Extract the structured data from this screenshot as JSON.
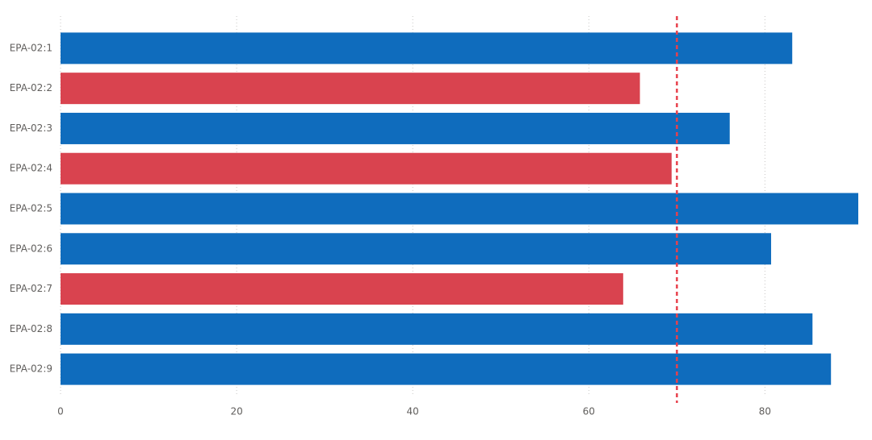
{
  "chart_data": {
    "type": "hbar",
    "categories": [
      "EPA-02:1",
      "EPA-02:2",
      "EPA-02:3",
      "EPA-02:4",
      "EPA-02:5",
      "EPA-02:6",
      "EPA-02:7",
      "EPA-02:8",
      "EPA-02:9"
    ],
    "values": [
      83.1,
      65.8,
      76.0,
      69.4,
      90.6,
      80.7,
      63.9,
      85.4,
      87.5
    ],
    "colors": [
      "#0f6cbd",
      "#d9434f",
      "#0f6cbd",
      "#d9434f",
      "#0f6cbd",
      "#0f6cbd",
      "#d9434f",
      "#0f6cbd",
      "#0f6cbd"
    ],
    "xlim": [
      0,
      90.6
    ],
    "xticks": [
      0,
      20,
      40,
      60,
      80
    ],
    "grid": true,
    "reference_line": {
      "value": 70,
      "color": "#e8414c"
    }
  }
}
